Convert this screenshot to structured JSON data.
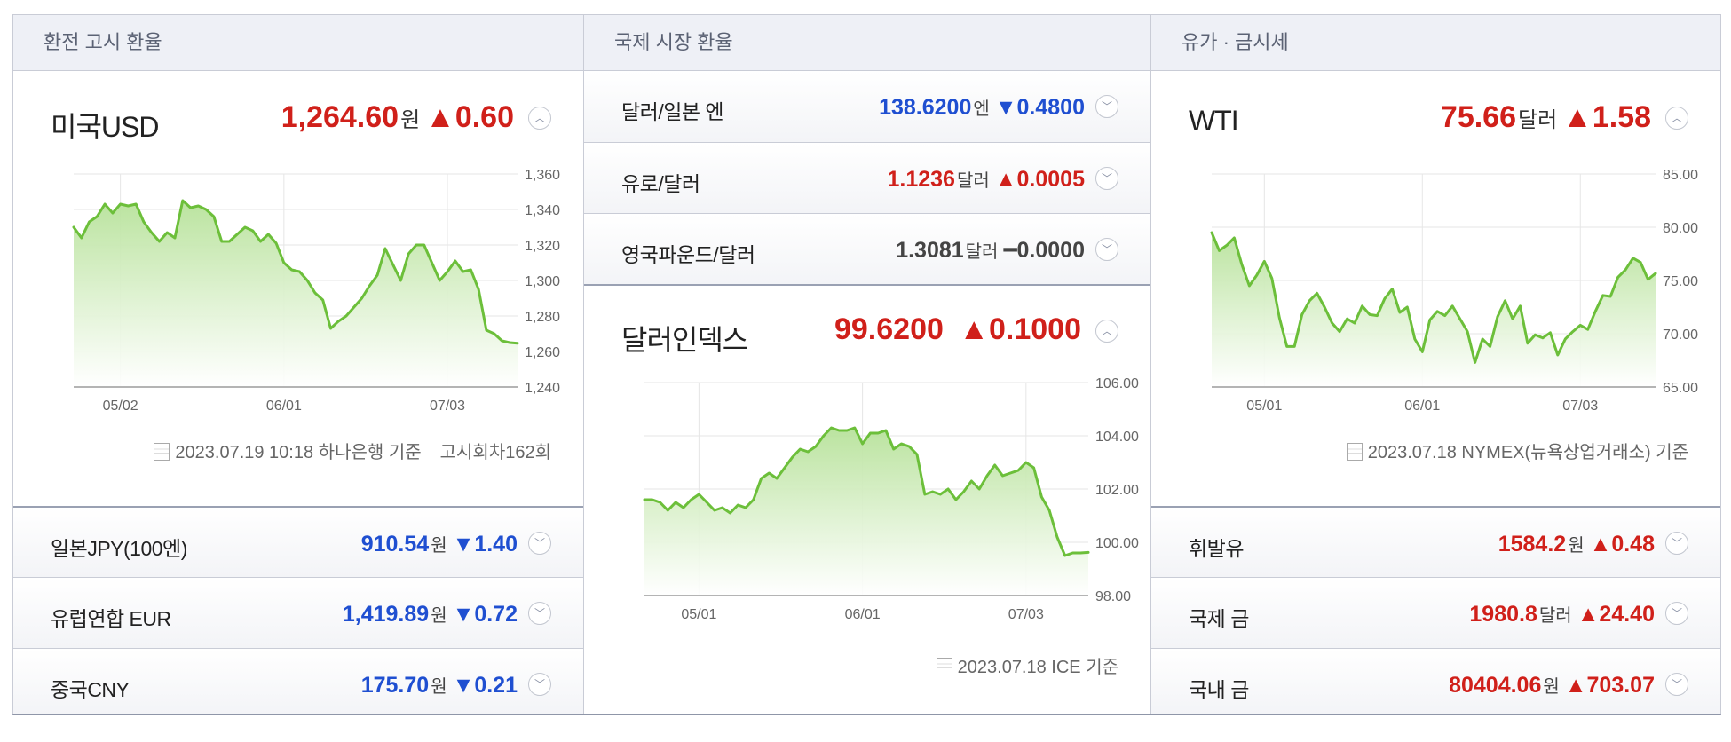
{
  "columns": [
    {
      "heading": "환전 고시 환율",
      "main": {
        "name": "미국USD",
        "value": "1,264.60",
        "unit": "원",
        "change": "▲0.60",
        "direction": "up"
      },
      "source": "2023.07.19 10:18 하나은행 기준",
      "source_extra": "고시회차162회",
      "rows": [
        {
          "name": "일본JPY(100엔)",
          "value": "910.54",
          "unit": "원",
          "change": "▼1.40",
          "direction": "down"
        },
        {
          "name": "유럽연합 EUR",
          "value": "1,419.89",
          "unit": "원",
          "change": "▼0.72",
          "direction": "down"
        },
        {
          "name": "중국CNY",
          "value": "175.70",
          "unit": "원",
          "change": "▼0.21",
          "direction": "down"
        }
      ]
    },
    {
      "heading": "국제 시장 환율",
      "rows": [
        {
          "name": "달러/일본 엔",
          "value": "138.6200",
          "unit": "엔",
          "change": "▼0.4800",
          "direction": "down"
        },
        {
          "name": "유로/달러",
          "value": "1.1236",
          "unit": "달러",
          "change": "▲0.0005",
          "direction": "up"
        },
        {
          "name": "영국파운드/달러",
          "value": "1.3081",
          "unit": "달러",
          "change": "━0.0000",
          "direction": "flat"
        }
      ],
      "main": {
        "name": "달러인덱스",
        "value": "99.6200",
        "unit": "",
        "change": "▲0.1000",
        "direction": "up"
      },
      "source": "2023.07.18 ICE 기준"
    },
    {
      "heading": "유가 · 금시세",
      "main": {
        "name": "WTI",
        "value": "75.66",
        "unit": "달러",
        "change": "▲1.58",
        "direction": "up"
      },
      "source": "2023.07.18 NYMEX(뉴욕상업거래소) 기준",
      "rows": [
        {
          "name": "휘발유",
          "value": "1584.2",
          "unit": "원",
          "change": "▲0.48",
          "direction": "up"
        },
        {
          "name": "국제 금",
          "value": "1980.8",
          "unit": "달러",
          "change": "▲24.40",
          "direction": "up"
        },
        {
          "name": "국내 금",
          "value": "80404.06",
          "unit": "원",
          "change": "▲703.07",
          "direction": "up"
        }
      ]
    }
  ],
  "colors": {
    "up": "#d0201a",
    "down": "#1f4fd1",
    "line": "#6cbf3a"
  },
  "chart_data": [
    {
      "type": "area",
      "x_ticks": [
        "05/02",
        "06/01",
        "07/03"
      ],
      "x_tick_index": [
        6,
        27,
        48
      ],
      "y_ticks": [
        "1,360",
        "1,340",
        "1,320",
        "1,300",
        "1,280",
        "1,260",
        "1,240"
      ],
      "ylim": [
        1240,
        1360
      ],
      "values": [
        1330,
        1324,
        1333,
        1336,
        1343,
        1338,
        1343,
        1342,
        1343,
        1333,
        1327,
        1322,
        1327,
        1324,
        1345,
        1341,
        1342,
        1340,
        1336,
        1322,
        1322,
        1326,
        1330,
        1328,
        1322,
        1326,
        1321,
        1310,
        1306,
        1305,
        1300,
        1293,
        1289,
        1273,
        1277,
        1280,
        1285,
        1290,
        1297,
        1303,
        1318,
        1309,
        1300,
        1315,
        1320,
        1320,
        1310,
        1300,
        1305,
        1311,
        1305,
        1306,
        1295,
        1272,
        1270,
        1266,
        1265,
        1264.6
      ]
    },
    {
      "type": "area",
      "x_ticks": [
        "05/01",
        "06/01",
        "07/03"
      ],
      "x_tick_index": [
        7,
        28,
        49
      ],
      "y_ticks": [
        "106.00",
        "104.00",
        "102.00",
        "100.00",
        "98.00"
      ],
      "ylim": [
        98,
        106
      ],
      "values": [
        101.6,
        101.6,
        101.5,
        101.2,
        101.5,
        101.3,
        101.6,
        101.8,
        101.5,
        101.2,
        101.3,
        101.1,
        101.4,
        101.3,
        101.6,
        102.4,
        102.6,
        102.4,
        102.8,
        103.2,
        103.5,
        103.4,
        103.6,
        104.0,
        104.3,
        104.2,
        104.2,
        104.3,
        103.7,
        104.1,
        104.1,
        104.2,
        103.5,
        103.7,
        103.6,
        103.3,
        101.8,
        101.9,
        101.8,
        102.0,
        101.6,
        101.9,
        102.3,
        102.0,
        102.5,
        102.9,
        102.5,
        102.6,
        102.7,
        103.0,
        102.8,
        101.7,
        101.2,
        100.2,
        99.5,
        99.6,
        99.6,
        99.62
      ]
    },
    {
      "type": "area",
      "x_ticks": [
        "05/01",
        "06/01",
        "07/03"
      ],
      "x_tick_index": [
        7,
        28,
        49
      ],
      "y_ticks": [
        "85.00",
        "80.00",
        "75.00",
        "70.00",
        "65.00"
      ],
      "ylim": [
        65,
        85
      ],
      "values": [
        79.5,
        77.8,
        78.3,
        79.0,
        76.5,
        74.5,
        75.5,
        76.8,
        75.2,
        71.5,
        68.8,
        68.8,
        71.8,
        73.1,
        73.8,
        72.5,
        71.0,
        70.2,
        71.4,
        71.0,
        72.6,
        71.8,
        71.7,
        73.3,
        74.2,
        72.0,
        72.5,
        69.5,
        68.3,
        71.3,
        72.1,
        71.7,
        72.6,
        71.4,
        70.2,
        67.3,
        69.5,
        68.8,
        71.6,
        73.1,
        71.4,
        72.6,
        69.1,
        69.9,
        69.6,
        70.1,
        68.0,
        69.5,
        70.2,
        70.8,
        70.4,
        72.1,
        73.6,
        73.5,
        75.3,
        76.0,
        77.1,
        76.7,
        75.1,
        75.66
      ]
    }
  ]
}
